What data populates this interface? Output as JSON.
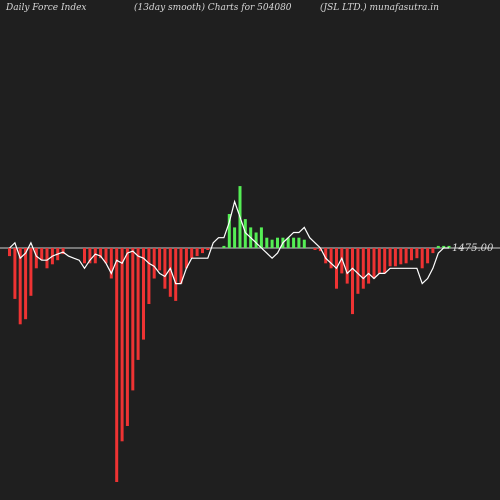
{
  "header": {
    "left": "Daily Force  Index",
    "middle": "(13day smooth) Charts for 504080",
    "right": "(JSL LTD.) munafasutra.in"
  },
  "colors": {
    "background": "#1f1f1f",
    "positive": "#55ee55",
    "negative": "#ee3333",
    "line": "#ffffff",
    "zero_line": "#cfcfcf"
  },
  "chart_data": {
    "type": "bar",
    "zero_label": "1475.00",
    "ylim": [
      -230,
      95
    ],
    "bars": [
      -8,
      -50,
      -75,
      -70,
      -47,
      -20,
      -12,
      -20,
      -16,
      -12,
      -6,
      0,
      0,
      0,
      -15,
      -15,
      -15,
      -10,
      -15,
      -30,
      -230,
      -190,
      -175,
      -140,
      -110,
      -90,
      -55,
      -30,
      -22,
      -40,
      -48,
      -52,
      -35,
      -20,
      -10,
      -8,
      -5,
      -2,
      0,
      0,
      2,
      33,
      20,
      60,
      28,
      20,
      15,
      20,
      10,
      8,
      10,
      10,
      10,
      10,
      10,
      8,
      0,
      -2,
      -3,
      -15,
      -20,
      -40,
      -25,
      -35,
      -65,
      -45,
      -40,
      -35,
      -30,
      -25,
      -25,
      -18,
      -18,
      -16,
      -15,
      -12,
      -10,
      -20,
      -15,
      -5,
      2,
      2,
      2
    ],
    "line": [
      0,
      5,
      -10,
      -5,
      5,
      -8,
      -12,
      -12,
      -8,
      -6,
      -4,
      -8,
      -10,
      -12,
      -20,
      -12,
      -6,
      -8,
      -15,
      -25,
      -12,
      -15,
      -5,
      -3,
      -8,
      -10,
      -15,
      -18,
      -25,
      -28,
      -20,
      -35,
      -35,
      -20,
      -10,
      -10,
      -10,
      -10,
      5,
      10,
      10,
      25,
      45,
      30,
      15,
      10,
      5,
      0,
      -5,
      -10,
      -5,
      5,
      10,
      15,
      15,
      20,
      10,
      5,
      0,
      -10,
      -15,
      -20,
      -10,
      -25,
      -20,
      -25,
      -30,
      -25,
      -30,
      -25,
      -25,
      -20,
      -20,
      -20,
      -20,
      -20,
      -20,
      -35,
      -30,
      -20,
      -5,
      0,
      0
    ]
  }
}
